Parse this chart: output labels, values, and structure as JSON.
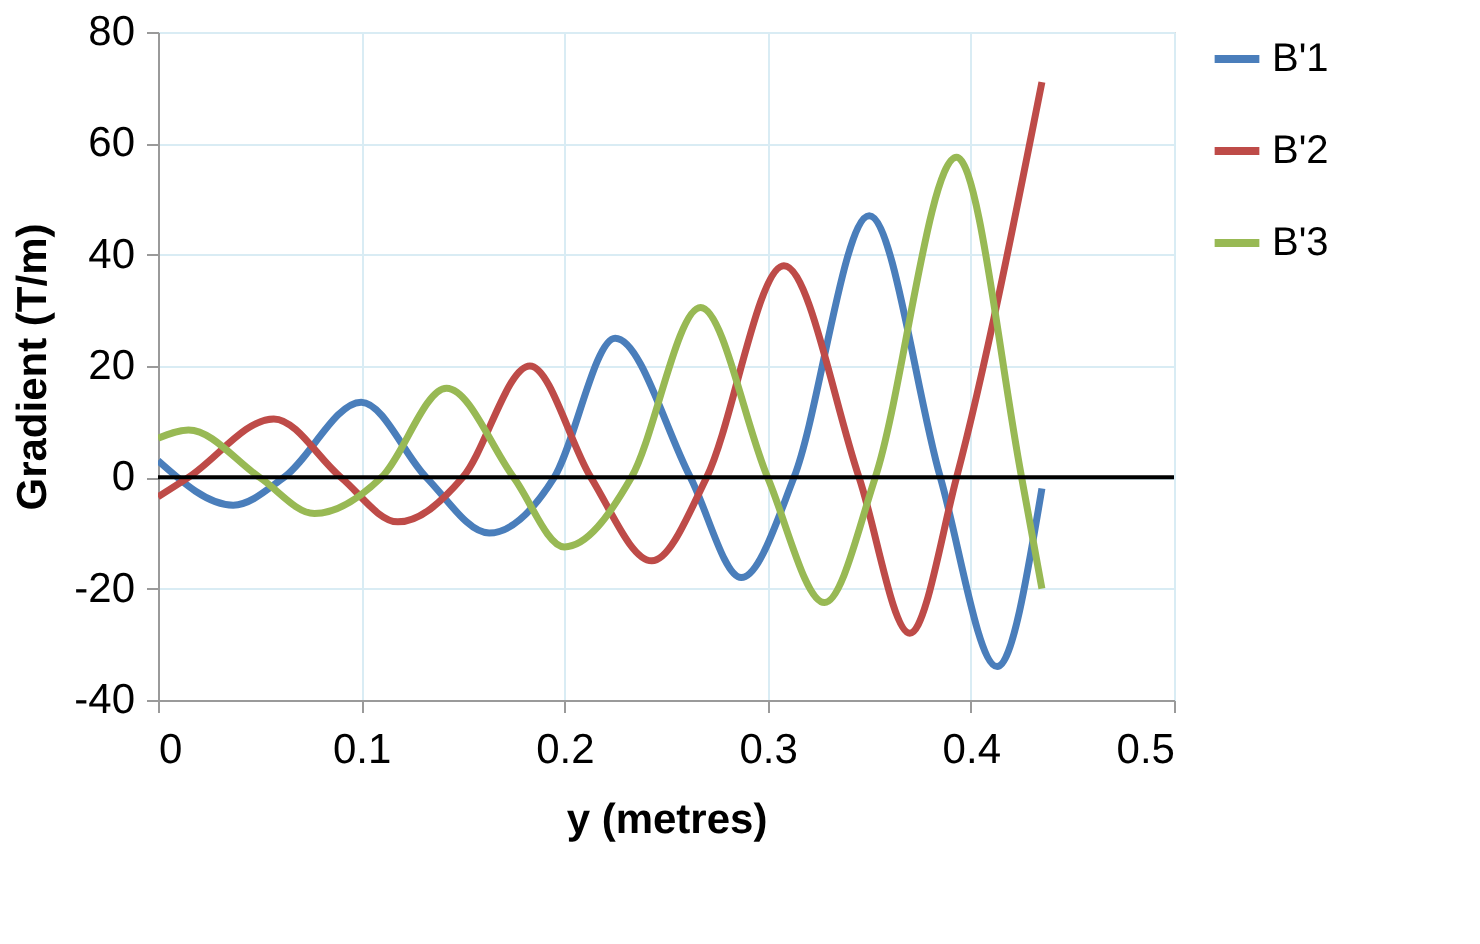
{
  "chart_data": {
    "type": "line",
    "xlabel": "y (metres)",
    "ylabel": "Gradient (T/m)",
    "xlim": [
      0,
      0.5
    ],
    "xticks": [
      0,
      0.1,
      0.2,
      0.3,
      0.4,
      0.5
    ],
    "ylim": [
      -40,
      80
    ],
    "yticks": [
      -40,
      -20,
      0,
      20,
      40,
      60,
      80
    ],
    "grid": true,
    "legend": "right",
    "marker": "none",
    "line_style": "solid",
    "ref_lines": [
      {
        "axis": "y",
        "value": 0,
        "color": "#000000"
      }
    ],
    "series": [
      {
        "name": "B'1",
        "color": "#4a7ebb",
        "x": [
          0,
          0.037,
          0.062,
          0.1,
          0.132,
          0.163,
          0.195,
          0.225,
          0.262,
          0.287,
          0.313,
          0.35,
          0.385,
          0.413,
          0.435
        ],
        "values": [
          3,
          -5,
          0,
          13.5,
          0,
          -10,
          0,
          25,
          0,
          -18,
          0,
          47,
          0,
          -34,
          -2
        ]
      },
      {
        "name": "B'2",
        "color": "#be4b48",
        "x": [
          0,
          0.015,
          0.057,
          0.09,
          0.118,
          0.15,
          0.183,
          0.213,
          0.243,
          0.27,
          0.308,
          0.345,
          0.37,
          0.393,
          0.435
        ],
        "values": [
          -3.5,
          0,
          10.5,
          0,
          -8,
          0,
          20,
          0,
          -15,
          0,
          38,
          0,
          -28,
          0,
          71
        ]
      },
      {
        "name": "B'3",
        "color": "#98b954",
        "x": [
          0,
          0.015,
          0.05,
          0.077,
          0.11,
          0.142,
          0.175,
          0.2,
          0.233,
          0.267,
          0.3,
          0.328,
          0.353,
          0.393,
          0.425,
          0.435
        ],
        "values": [
          7,
          8.5,
          0,
          -6.5,
          0,
          16,
          0,
          -12.5,
          0,
          30.5,
          0,
          -22.5,
          0,
          57.5,
          0,
          -20
        ]
      }
    ]
  }
}
